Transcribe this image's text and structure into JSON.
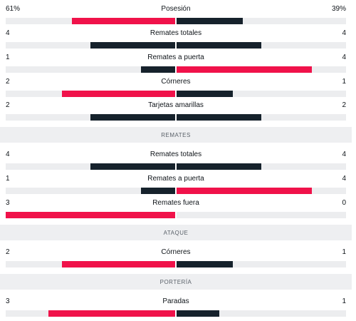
{
  "colors": {
    "home": "#f0124a",
    "away": "#16222c",
    "track": "#ecedef"
  },
  "stats_top": [
    {
      "label": "Posesión",
      "home": "61%",
      "away": "39%",
      "home_frac": 0.61,
      "away_frac": 0.39,
      "leader": "home"
    },
    {
      "label": "Remates totales",
      "home": "4",
      "away": "4",
      "home_frac": 0.5,
      "away_frac": 0.5,
      "leader": "none"
    },
    {
      "label": "Remates a puerta",
      "home": "1",
      "away": "4",
      "home_frac": 0.2,
      "away_frac": 0.8,
      "leader": "away"
    },
    {
      "label": "Córneres",
      "home": "2",
      "away": "1",
      "home_frac": 0.667,
      "away_frac": 0.333,
      "leader": "home"
    },
    {
      "label": "Tarjetas amarillas",
      "home": "2",
      "away": "2",
      "home_frac": 0.5,
      "away_frac": 0.5,
      "leader": "none"
    }
  ],
  "sections": [
    {
      "title": "REMATES",
      "stats": [
        {
          "label": "Remates totales",
          "home": "4",
          "away": "4",
          "home_frac": 0.5,
          "away_frac": 0.5,
          "leader": "none"
        },
        {
          "label": "Remates a puerta",
          "home": "1",
          "away": "4",
          "home_frac": 0.2,
          "away_frac": 0.8,
          "leader": "away"
        },
        {
          "label": "Remates fuera",
          "home": "3",
          "away": "0",
          "home_frac": 1.0,
          "away_frac": 0.0,
          "leader": "home"
        }
      ]
    },
    {
      "title": "ATAQUE",
      "stats": [
        {
          "label": "Córneres",
          "home": "2",
          "away": "1",
          "home_frac": 0.667,
          "away_frac": 0.333,
          "leader": "home"
        }
      ]
    },
    {
      "title": "PORTERÍA",
      "stats": [
        {
          "label": "Paradas",
          "home": "3",
          "away": "1",
          "home_frac": 0.75,
          "away_frac": 0.25,
          "leader": "home"
        }
      ]
    }
  ]
}
